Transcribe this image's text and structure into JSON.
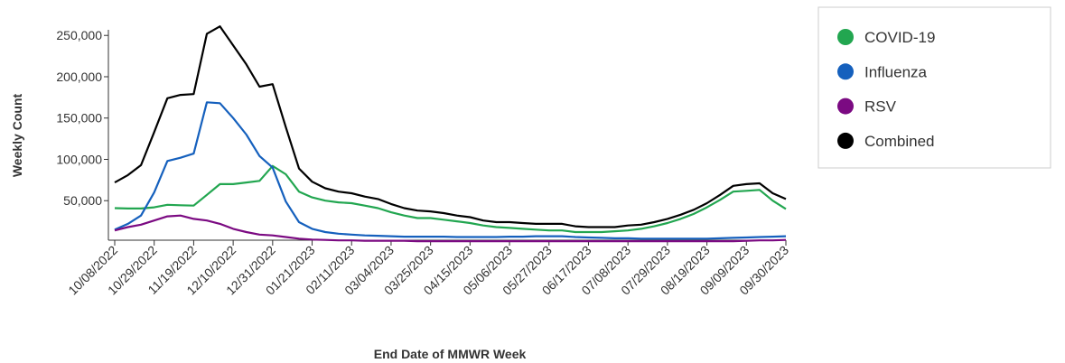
{
  "chart_data": {
    "type": "line",
    "x_label": "End Date of MMWR Week",
    "y_label": "Weekly Count",
    "categories": [
      "10/08/2022",
      null,
      null,
      "10/29/2022",
      null,
      null,
      "11/19/2022",
      null,
      null,
      "12/10/2022",
      null,
      null,
      "12/31/2022",
      null,
      null,
      "01/21/2023",
      null,
      null,
      "02/11/2023",
      null,
      null,
      "03/04/2023",
      null,
      null,
      "03/25/2023",
      null,
      null,
      "04/15/2023",
      null,
      null,
      "05/06/2023",
      null,
      null,
      "05/27/2023",
      null,
      null,
      "06/17/2023",
      null,
      null,
      "07/08/2023",
      null,
      null,
      "07/29/2023",
      null,
      null,
      "08/19/2023",
      null,
      null,
      "09/09/2023",
      null,
      null,
      "09/30/2023"
    ],
    "ylim": [
      0,
      265000
    ],
    "yticks": [
      {
        "value": 50000,
        "label": "50,000"
      },
      {
        "value": 100000,
        "label": "100,000"
      },
      {
        "value": 150000,
        "label": "150,000"
      },
      {
        "value": 200000,
        "label": "200,000"
      },
      {
        "value": 250000,
        "label": "250,000"
      }
    ],
    "legend": "right",
    "series": [
      {
        "name": "COVID-19",
        "color": "#22a650",
        "values": [
          41000,
          40500,
          40500,
          42000,
          45000,
          44500,
          44000,
          57000,
          70000,
          70000,
          72000,
          74000,
          92000,
          82000,
          61000,
          54000,
          50000,
          48000,
          47000,
          44000,
          41000,
          36000,
          32000,
          29000,
          29000,
          27000,
          25000,
          23000,
          20000,
          18000,
          17000,
          16000,
          15000,
          14000,
          14000,
          12000,
          12000,
          12000,
          13000,
          14000,
          16000,
          19000,
          23000,
          28000,
          34000,
          42000,
          51000,
          61000,
          62000,
          63000,
          50000,
          40000
        ]
      },
      {
        "name": "Influenza",
        "color": "#1560bd",
        "values": [
          15000,
          22000,
          32000,
          60000,
          98000,
          102000,
          107000,
          169000,
          168000,
          150000,
          130000,
          104000,
          90000,
          49000,
          24000,
          16000,
          12000,
          10000,
          9000,
          8000,
          7500,
          7000,
          6500,
          6500,
          6500,
          6500,
          6000,
          6000,
          6000,
          6000,
          6500,
          6500,
          7000,
          7000,
          7000,
          6000,
          5500,
          5000,
          4500,
          4500,
          4000,
          4000,
          4000,
          4000,
          4000,
          4000,
          4500,
          5000,
          5500,
          6000,
          6500,
          7000
        ]
      },
      {
        "name": "RSV",
        "color": "#7b0a82",
        "values": [
          14000,
          18000,
          21000,
          26000,
          31000,
          32000,
          28000,
          26000,
          22000,
          16000,
          12000,
          9000,
          8000,
          6000,
          4000,
          3000,
          2500,
          2000,
          2000,
          1500,
          1500,
          1500,
          1500,
          1000,
          1000,
          1000,
          1000,
          1000,
          1000,
          1000,
          1000,
          1000,
          1000,
          1000,
          1000,
          1000,
          1000,
          1000,
          1000,
          1000,
          1000,
          1000,
          1000,
          1000,
          1000,
          1000,
          1000,
          1000,
          1500,
          2000,
          2000,
          2500
        ]
      },
      {
        "name": "Combined",
        "color": "#000000",
        "values": [
          72000,
          81000,
          93000,
          133000,
          174000,
          178000,
          179000,
          252000,
          261000,
          238000,
          215000,
          188000,
          191000,
          139000,
          89000,
          73000,
          65000,
          61000,
          59000,
          55000,
          52000,
          46000,
          41000,
          38000,
          37000,
          35000,
          32000,
          30000,
          26000,
          24000,
          24000,
          23000,
          22000,
          22000,
          22000,
          19000,
          18000,
          18000,
          18000,
          20000,
          21000,
          24000,
          28000,
          33000,
          39000,
          47000,
          57000,
          68000,
          70000,
          71000,
          59000,
          52000
        ]
      }
    ]
  }
}
